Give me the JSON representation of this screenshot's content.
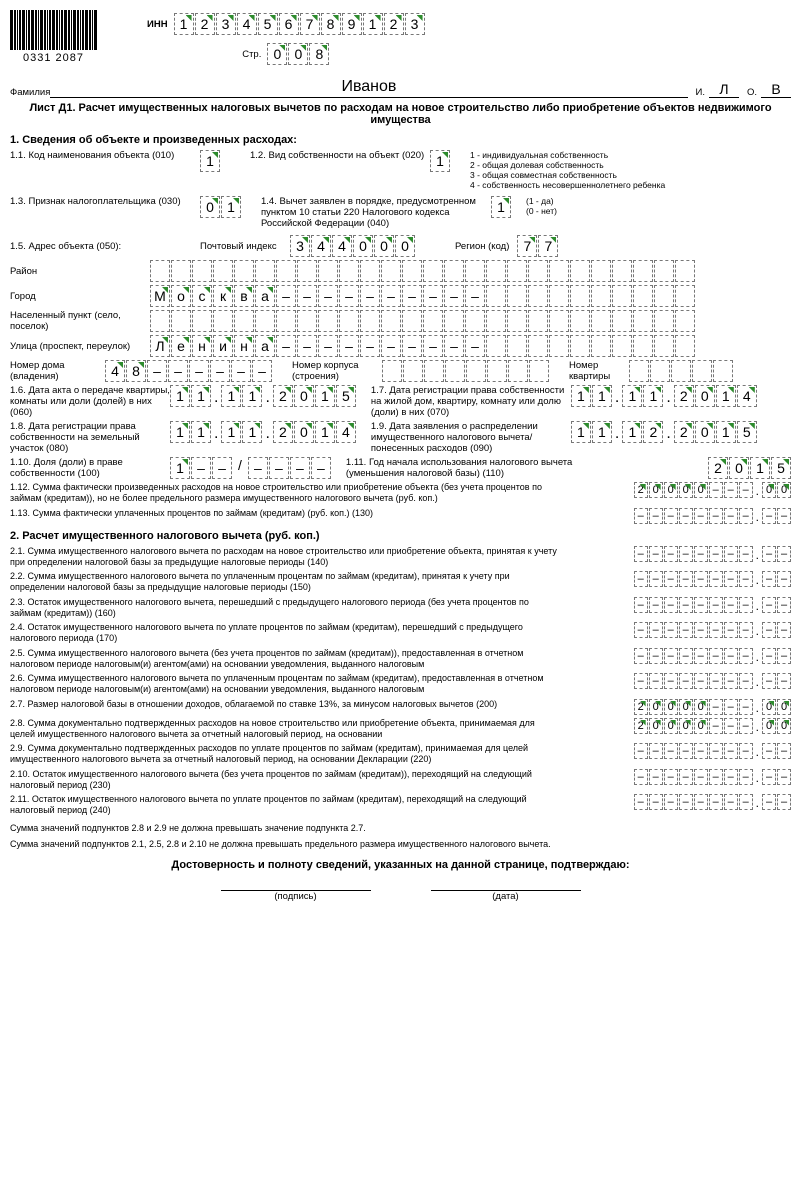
{
  "barcode_label": "0331 2087",
  "inn_label": "ИНН",
  "inn": "123456789123",
  "page_label": "Стр.",
  "page": "008",
  "surname_label": "Фамилия",
  "surname": "Иванов",
  "i_label": "И.",
  "initial_i": "Л",
  "o_label": "О.",
  "initial_o": "В",
  "title": "Лист Д1. Расчет имущественных налоговых вычетов по расходам на новое строительство либо приобретение объектов недвижимого имущества",
  "sec1_title": "1. Сведения об объекте и произведенных расходах:",
  "l11": "1.1. Код наименования объекта (010)",
  "v11": "1",
  "l12": "1.2. Вид собственности на объект (020)",
  "v12": "1",
  "ownership_types": "1 - индивидуальная собственность\n2 - общая долевая собственность\n3 - общая совместная собственность\n4 - собственность несовершеннолетнего ребенка",
  "l13": "1.3. Признак налогоплательщика (030)",
  "v13": "01",
  "l14": "1.4. Вычет заявлен в порядке, предусмотренном пунктом 10 статьи 220 Налогового кодекса Российской Федерации (040)",
  "v14": "1",
  "l14_hint": "(1 - да)\n(0 - нет)",
  "l15": "1.5. Адрес объекта (050):",
  "postal_label": "Почтовый индекс",
  "postal": "344000",
  "region_label": "Регион (код)",
  "region": "77",
  "raion_label": "Район",
  "city_label": "Город",
  "city": "Москва----------",
  "settlement_label": "Населенный пункт (село, поселок)",
  "street_label": "Улица (проспект, переулок)",
  "street": "Ленина----------",
  "house_label": "Номер дома (владения)",
  "house": "48------",
  "korpus_label": "Номер корпуса (строения)",
  "flat_label": "Номер квартиры",
  "l16": "1.6. Дата акта о передаче квартиры, комнаты или доли (долей) в них (060)",
  "v16": "11.11.2015",
  "l17": "1.7. Дата регистрации права собственности на жилой дом, квартиру, комнату или долю (доли) в них (070)",
  "v17": "11.11.2014",
  "l18": "1.8. Дата регистрации права собственности на земельный участок (080)",
  "v18": "11.11.2014",
  "l19": "1.9. Дата заявления о распределении имущественного налогового вычета/понесенных расходов (090)",
  "v19": "11.12.2015",
  "l110": "1.10. Доля (доли) в праве собственности (100)",
  "v110a": "1--",
  "v110b": "----",
  "l111": "1.11. Год начала использования налогового вычета (уменьшения налоговой базы) (110)",
  "v111": "2015",
  "l112": "1.12. Сумма фактически произведенных расходов на новое строительство или приобретение объекта (без учета процентов по займам (кредитам)), но не более предельного размера имущественного налогового вычета (руб. коп.)",
  "v112": "20000---.00",
  "l113": "1.13. Сумма фактически уплаченных процентов по займам (кредитам) (руб. коп.) (130)",
  "sec2_title": "2. Расчет имущественного налогового вычета (руб. коп.)",
  "l21": "2.1. Сумма имущественного налогового вычета по расходам на новое строительство или приобретение объекта, принятая к учету при определении налоговой базы за предыдущие налоговые периоды (140)",
  "l22": "2.2. Сумма имущественного налогового вычета по уплаченным процентам по займам (кредитам), принятая к учету при определении налоговой базы за предыдущие налоговые периоды (150)",
  "l23": "2.3. Остаток имущественного налогового вычета, перешедший с предыдущего налогового периода (без учета процентов по займам (кредитам)) (160)",
  "l24": "2.4. Остаток имущественного налогового вычета по уплате процентов по займам (кредитам), перешедший с предыдущего налогового периода (170)",
  "l25": "2.5. Сумма имущественного налогового вычета (без учета процентов по займам (кредитам)), предоставленная в отчетном налоговом периоде налоговым(и) агентом(ами) на основании уведомления, выданного налоговым",
  "l26": "2.6. Сумма имущественного налогового вычета по уплаченным процентам по займам (кредитам), предоставленная в отчетном налоговом периоде налоговым(и) агентом(ами) на основании уведомления, выданного налоговым",
  "l27": "2.7. Размер налоговой базы в отношении доходов, облагаемой по ставке 13%, за минусом налоговых вычетов (200)",
  "v27": "20000---.00",
  "l28": "2.8. Сумма документально подтвержденных расходов на новое строительство или приобретение объекта, принимаемая для целей имущественного налогового вычета за отчетный налоговый период, на основании",
  "v28": "20000---.00",
  "l29": "2.9. Сумма документально подтвержденных расходов по уплате процентов по займам (кредитам), принимаемая для целей имущественного налогового вычета за отчетный налоговый период, на основании Декларации (220)",
  "l210": "2.10. Остаток имущественного налогового вычета (без учета процентов по займам (кредитам)), переходящий на следующий налоговый период (230)",
  "l211": "2.11. Остаток имущественного налогового вычета по уплате процентов по займам (кредитам), переходящий на следующий налоговый период (240)",
  "note1": "Сумма значений подпунктов 2.8 и 2.9 не должна превышать значение подпункта 2.7.",
  "note2": "Сумма значений подпунктов 2.1, 2.5, 2.8 и 2.10 не должна превышать предельного размера имущественного налогового вычета.",
  "confirm": "Достоверность и полноту сведений, указанных на данной странице, подтверждаю:",
  "sign_label": "(подпись)",
  "date_label": "(дата)"
}
